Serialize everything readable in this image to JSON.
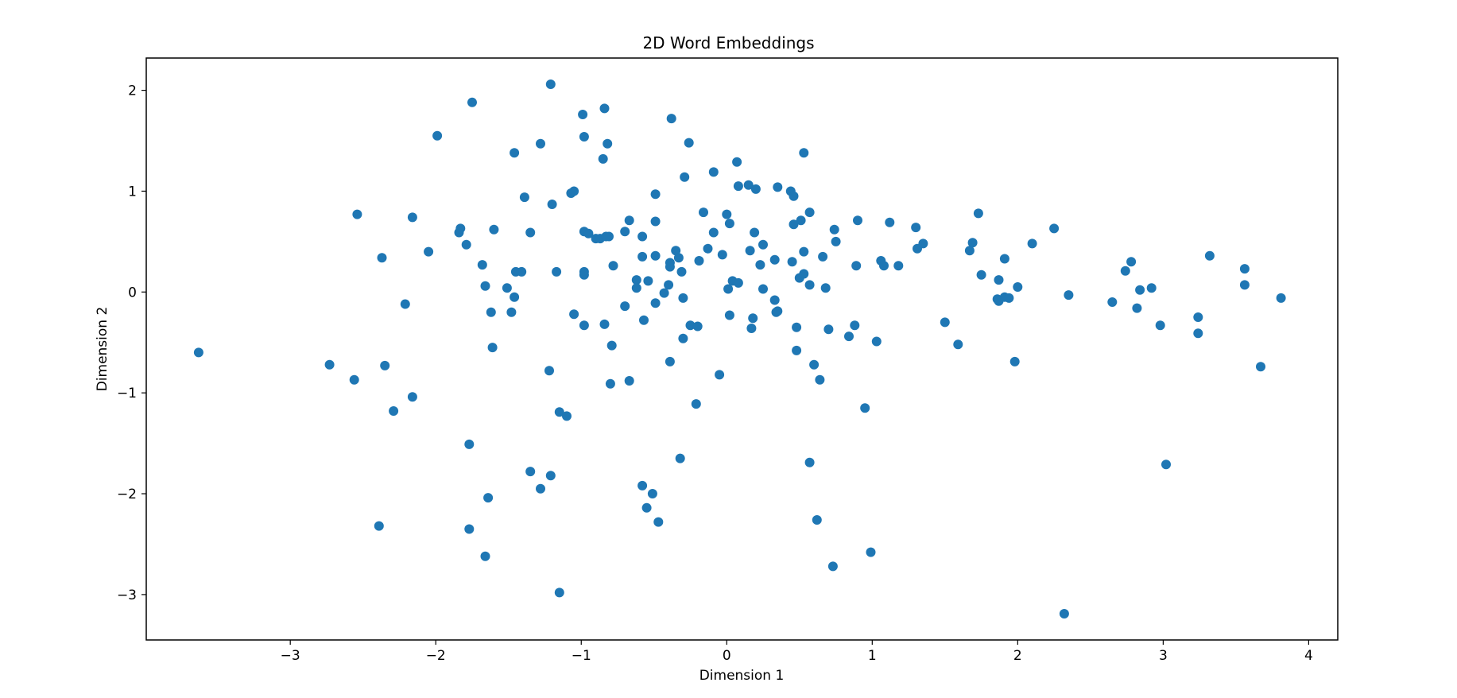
{
  "chart_data": {
    "type": "scatter",
    "title": "2D Word Embeddings",
    "xlabel": "Dimension 1",
    "ylabel": "Dimension 2",
    "xlim": [
      -3.99,
      4.2
    ],
    "ylim": [
      -3.45,
      2.32
    ],
    "xticks": [
      -3,
      -2,
      -1,
      0,
      1,
      2,
      3,
      4
    ],
    "yticks": [
      -3,
      -2,
      -1,
      0,
      1,
      2
    ],
    "xtick_labels": [
      "−3",
      "−2",
      "−1",
      "0",
      "1",
      "2",
      "3",
      "4"
    ],
    "ytick_labels": [
      "−3",
      "−2",
      "−1",
      "0",
      "1",
      "2"
    ],
    "grid": false,
    "marker_color": "#1f77b4",
    "points": [
      [
        -3.63,
        -0.6
      ],
      [
        -2.73,
        -0.72
      ],
      [
        -2.56,
        -0.87
      ],
      [
        -2.54,
        0.77
      ],
      [
        -2.37,
        0.34
      ],
      [
        -2.35,
        -0.73
      ],
      [
        -2.39,
        -2.32
      ],
      [
        -2.29,
        -1.18
      ],
      [
        -2.21,
        -0.12
      ],
      [
        -2.16,
        0.74
      ],
      [
        -2.16,
        -1.04
      ],
      [
        -2.05,
        0.4
      ],
      [
        -1.99,
        1.55
      ],
      [
        -1.84,
        0.59
      ],
      [
        -1.83,
        0.63
      ],
      [
        -1.79,
        0.47
      ],
      [
        -1.75,
        1.88
      ],
      [
        -1.77,
        -1.51
      ],
      [
        -1.77,
        -2.35
      ],
      [
        -1.68,
        0.27
      ],
      [
        -1.66,
        0.06
      ],
      [
        -1.66,
        -2.62
      ],
      [
        -1.64,
        -2.04
      ],
      [
        -1.62,
        -0.2
      ],
      [
        -1.6,
        0.62
      ],
      [
        -1.61,
        -0.55
      ],
      [
        -1.51,
        0.04
      ],
      [
        -1.48,
        -0.2
      ],
      [
        -1.46,
        1.38
      ],
      [
        -1.46,
        -0.05
      ],
      [
        -1.45,
        0.2
      ],
      [
        -1.41,
        0.2
      ],
      [
        -1.39,
        0.94
      ],
      [
        -1.35,
        0.59
      ],
      [
        -1.35,
        -1.78
      ],
      [
        -1.28,
        1.47
      ],
      [
        -1.28,
        -1.95
      ],
      [
        -1.21,
        2.06
      ],
      [
        -1.22,
        -0.78
      ],
      [
        -1.21,
        -1.82
      ],
      [
        -1.2,
        0.87
      ],
      [
        -1.17,
        0.2
      ],
      [
        -1.15,
        -1.19
      ],
      [
        -1.15,
        -2.98
      ],
      [
        -1.1,
        -1.23
      ],
      [
        -1.07,
        0.98
      ],
      [
        -1.05,
        1.0
      ],
      [
        -1.05,
        -0.22
      ],
      [
        -0.99,
        1.76
      ],
      [
        -0.98,
        1.54
      ],
      [
        -0.98,
        0.6
      ],
      [
        -0.98,
        0.2
      ],
      [
        -0.98,
        0.17
      ],
      [
        -0.98,
        -0.33
      ],
      [
        -0.95,
        0.58
      ],
      [
        -0.9,
        0.53
      ],
      [
        -0.87,
        0.53
      ],
      [
        -0.85,
        1.32
      ],
      [
        -0.84,
        1.82
      ],
      [
        -0.84,
        -0.32
      ],
      [
        -0.82,
        1.47
      ],
      [
        -0.81,
        0.55
      ],
      [
        -0.83,
        0.55
      ],
      [
        -0.8,
        -0.91
      ],
      [
        -0.78,
        0.26
      ],
      [
        -0.79,
        -0.53
      ],
      [
        -0.7,
        0.6
      ],
      [
        -0.7,
        -0.14
      ],
      [
        -0.67,
        0.71
      ],
      [
        -0.67,
        -0.88
      ],
      [
        -0.62,
        0.12
      ],
      [
        -0.62,
        0.04
      ],
      [
        -0.58,
        0.55
      ],
      [
        -0.58,
        0.35
      ],
      [
        -0.57,
        -0.28
      ],
      [
        -0.58,
        -1.92
      ],
      [
        -0.54,
        0.11
      ],
      [
        -0.55,
        -2.14
      ],
      [
        -0.51,
        -2.0
      ],
      [
        -0.49,
        0.97
      ],
      [
        -0.49,
        0.7
      ],
      [
        -0.49,
        0.36
      ],
      [
        -0.49,
        -0.11
      ],
      [
        -0.47,
        -2.28
      ],
      [
        -0.43,
        -0.01
      ],
      [
        -0.4,
        0.07
      ],
      [
        -0.39,
        0.29
      ],
      [
        -0.39,
        0.25
      ],
      [
        -0.39,
        -0.69
      ],
      [
        -0.38,
        1.72
      ],
      [
        -0.35,
        0.41
      ],
      [
        -0.33,
        0.34
      ],
      [
        -0.32,
        -1.65
      ],
      [
        -0.31,
        0.2
      ],
      [
        -0.3,
        -0.06
      ],
      [
        -0.3,
        -0.46
      ],
      [
        -0.29,
        1.14
      ],
      [
        -0.26,
        1.48
      ],
      [
        -0.25,
        -0.33
      ],
      [
        -0.2,
        -0.34
      ],
      [
        -0.21,
        -1.11
      ],
      [
        -0.19,
        0.31
      ],
      [
        -0.16,
        0.79
      ],
      [
        -0.13,
        0.43
      ],
      [
        -0.09,
        1.19
      ],
      [
        -0.09,
        0.59
      ],
      [
        -0.05,
        -0.82
      ],
      [
        -0.03,
        0.37
      ],
      [
        0.0,
        0.77
      ],
      [
        0.01,
        0.03
      ],
      [
        0.02,
        0.68
      ],
      [
        0.02,
        -0.23
      ],
      [
        0.04,
        0.11
      ],
      [
        0.07,
        1.29
      ],
      [
        0.08,
        1.05
      ],
      [
        0.08,
        0.09
      ],
      [
        0.15,
        1.06
      ],
      [
        0.16,
        0.41
      ],
      [
        0.17,
        -0.36
      ],
      [
        0.18,
        -0.26
      ],
      [
        0.19,
        0.59
      ],
      [
        0.2,
        1.02
      ],
      [
        0.23,
        0.27
      ],
      [
        0.25,
        0.47
      ],
      [
        0.25,
        0.03
      ],
      [
        0.33,
        0.32
      ],
      [
        0.33,
        -0.08
      ],
      [
        0.34,
        -0.2
      ],
      [
        0.35,
        -0.19
      ],
      [
        0.35,
        1.04
      ],
      [
        0.44,
        1.0
      ],
      [
        0.46,
        0.95
      ],
      [
        0.46,
        0.67
      ],
      [
        0.45,
        0.3
      ],
      [
        0.48,
        -0.35
      ],
      [
        0.48,
        -0.58
      ],
      [
        0.5,
        0.14
      ],
      [
        0.51,
        0.71
      ],
      [
        0.53,
        0.18
      ],
      [
        0.53,
        1.38
      ],
      [
        0.53,
        0.4
      ],
      [
        0.57,
        0.07
      ],
      [
        0.57,
        0.79
      ],
      [
        0.57,
        -1.69
      ],
      [
        0.6,
        -0.72
      ],
      [
        0.62,
        -2.26
      ],
      [
        0.64,
        -0.87
      ],
      [
        0.66,
        0.35
      ],
      [
        0.68,
        0.04
      ],
      [
        0.7,
        -0.37
      ],
      [
        0.74,
        0.62
      ],
      [
        0.75,
        0.5
      ],
      [
        0.73,
        -2.72
      ],
      [
        0.84,
        -0.44
      ],
      [
        0.88,
        -0.33
      ],
      [
        0.89,
        0.26
      ],
      [
        0.9,
        0.71
      ],
      [
        0.95,
        -1.15
      ],
      [
        0.99,
        -2.58
      ],
      [
        1.03,
        -0.49
      ],
      [
        1.06,
        0.31
      ],
      [
        1.08,
        0.26
      ],
      [
        1.12,
        0.69
      ],
      [
        1.18,
        0.26
      ],
      [
        1.3,
        0.64
      ],
      [
        1.31,
        0.43
      ],
      [
        1.35,
        0.48
      ],
      [
        1.5,
        -0.3
      ],
      [
        1.59,
        -0.52
      ],
      [
        1.67,
        0.41
      ],
      [
        1.69,
        0.49
      ],
      [
        1.73,
        0.78
      ],
      [
        1.75,
        0.17
      ],
      [
        1.86,
        -0.07
      ],
      [
        1.87,
        -0.09
      ],
      [
        1.87,
        0.12
      ],
      [
        1.91,
        -0.05
      ],
      [
        1.91,
        0.33
      ],
      [
        1.94,
        -0.06
      ],
      [
        1.98,
        -0.69
      ],
      [
        2.0,
        0.05
      ],
      [
        2.1,
        0.48
      ],
      [
        2.25,
        0.63
      ],
      [
        2.32,
        -3.19
      ],
      [
        2.35,
        -0.03
      ],
      [
        2.65,
        -0.1
      ],
      [
        2.74,
        0.21
      ],
      [
        2.78,
        0.3
      ],
      [
        2.82,
        -0.16
      ],
      [
        2.84,
        0.02
      ],
      [
        2.92,
        0.04
      ],
      [
        2.98,
        -0.33
      ],
      [
        3.02,
        -1.71
      ],
      [
        3.24,
        -0.25
      ],
      [
        3.24,
        -0.41
      ],
      [
        3.32,
        0.36
      ],
      [
        3.56,
        0.23
      ],
      [
        3.56,
        0.07
      ],
      [
        3.67,
        -0.74
      ],
      [
        3.81,
        -0.06
      ]
    ]
  }
}
